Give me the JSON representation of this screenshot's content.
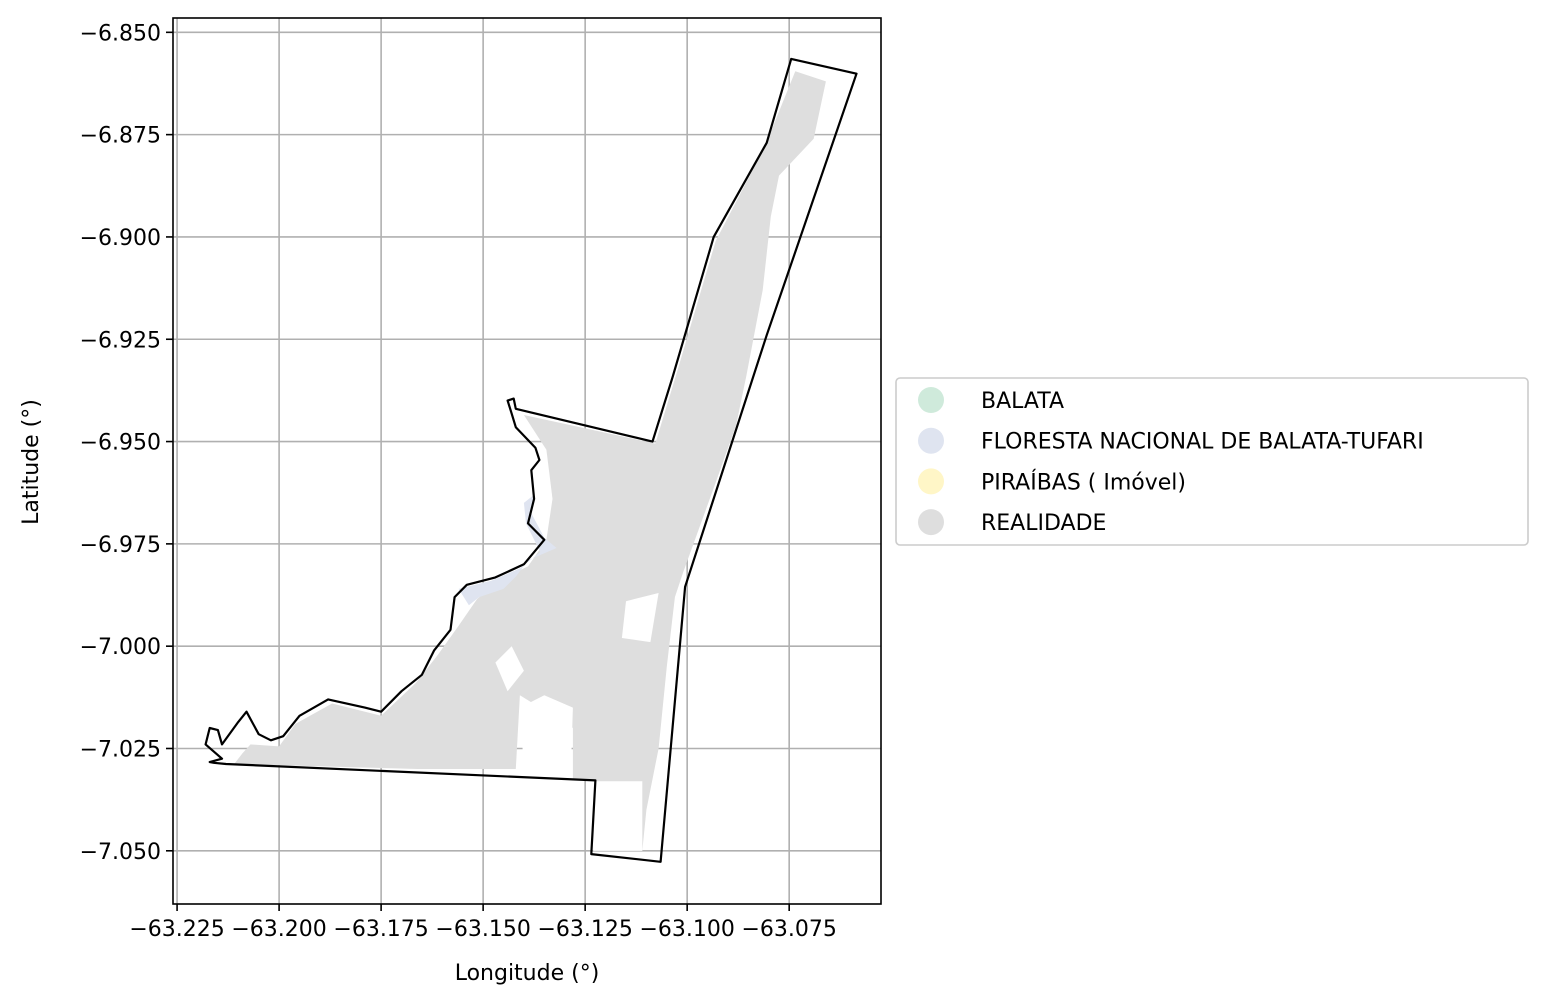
{
  "chart_data": {
    "type": "map",
    "xlabel": "Longitude (°)",
    "ylabel": "Latitude (°)",
    "xlim": [
      -63.226,
      -63.0525
    ],
    "ylim": [
      -7.063,
      -6.8465
    ],
    "grid": true,
    "xticks": [
      -63.225,
      -63.2,
      -63.175,
      -63.15,
      -63.125,
      -63.1,
      -63.075
    ],
    "xtick_labels": [
      "−63.225",
      "−63.200",
      "−63.175",
      "−63.150",
      "−63.125",
      "−63.100",
      "−63.075"
    ],
    "yticks": [
      -6.85,
      -6.875,
      -6.9,
      -6.925,
      -6.95,
      -6.975,
      -7.0,
      -7.025,
      -7.05
    ],
    "ytick_labels": [
      "−6.850",
      "−6.875",
      "−6.900",
      "−6.925",
      "−6.950",
      "−6.975",
      "−7.000",
      "−7.025",
      "−7.050"
    ],
    "legend": {
      "placement": "center-left outside",
      "entries": [
        {
          "label": "BALATA",
          "color": "#cfeadb"
        },
        {
          "label": "FLORESTA NACIONAL DE BALATA-TUFARI",
          "color": "#dfe4f0"
        },
        {
          "label": "PIRAÍBAS ( Imóvel)",
          "color": "#fff6c7"
        },
        {
          "label": "REALIDADE",
          "color": "#dedede"
        }
      ]
    },
    "boundary_outline": [
      [
        -63.216,
        -7.0285
      ],
      [
        -63.213,
        -7.0288
      ],
      [
        -63.1225,
        -7.0328
      ],
      [
        -63.1235,
        -7.0508
      ],
      [
        -63.1065,
        -7.0527
      ],
      [
        -63.1005,
        -6.9855
      ],
      [
        -63.0805,
        -6.924
      ],
      [
        -63.0585,
        -6.8601
      ],
      [
        -63.0745,
        -6.8565
      ],
      [
        -63.0805,
        -6.877
      ],
      [
        -63.0935,
        -6.9
      ],
      [
        -63.1035,
        -6.934
      ],
      [
        -63.1085,
        -6.95
      ],
      [
        -63.142,
        -6.942
      ],
      [
        -63.1425,
        -6.9395
      ],
      [
        -63.144,
        -6.94
      ],
      [
        -63.143,
        -6.9432
      ],
      [
        -63.142,
        -6.9465
      ],
      [
        -63.1372,
        -6.9515
      ],
      [
        -63.1362,
        -6.9545
      ],
      [
        -63.1382,
        -6.957
      ],
      [
        -63.1375,
        -6.964
      ],
      [
        -63.139,
        -6.97
      ],
      [
        -63.135,
        -6.974
      ],
      [
        -63.14,
        -6.98
      ],
      [
        -63.147,
        -6.9832
      ],
      [
        -63.154,
        -6.985
      ],
      [
        -63.157,
        -6.988
      ],
      [
        -63.158,
        -6.996
      ],
      [
        -63.162,
        -7.001
      ],
      [
        -63.165,
        -7.007
      ],
      [
        -63.17,
        -7.011
      ],
      [
        -63.175,
        -7.016
      ],
      [
        -63.179,
        -7.015
      ],
      [
        -63.188,
        -7.013
      ],
      [
        -63.195,
        -7.017
      ],
      [
        -63.199,
        -7.022
      ],
      [
        -63.202,
        -7.023
      ],
      [
        -63.205,
        -7.0215
      ],
      [
        -63.208,
        -7.016
      ],
      [
        -63.21,
        -7.0185
      ],
      [
        -63.214,
        -7.024
      ],
      [
        -63.215,
        -7.0205
      ],
      [
        -63.217,
        -7.02
      ],
      [
        -63.218,
        -7.024
      ],
      [
        -63.214,
        -7.0275
      ],
      [
        -63.217,
        -7.0283
      ]
    ],
    "realidade_area": [
      [
        -63.211,
        -7.0288
      ],
      [
        -63.166,
        -7.03
      ],
      [
        -63.142,
        -7.03
      ],
      [
        -63.141,
        -7.012
      ],
      [
        -63.128,
        -7.02
      ],
      [
        -63.128,
        -7.0325
      ],
      [
        -63.1225,
        -7.0328
      ],
      [
        -63.123,
        -7.05
      ],
      [
        -63.111,
        -7.05
      ],
      [
        -63.11,
        -7.04
      ],
      [
        -63.107,
        -7.025
      ],
      [
        -63.105,
        -7.005
      ],
      [
        -63.103,
        -6.988
      ],
      [
        -63.101,
        -6.982
      ],
      [
        -63.093,
        -6.96
      ],
      [
        -63.088,
        -6.946
      ],
      [
        -63.0855,
        -6.934
      ],
      [
        -63.0815,
        -6.913
      ],
      [
        -63.0795,
        -6.895
      ],
      [
        -63.0775,
        -6.885
      ],
      [
        -63.069,
        -6.876
      ],
      [
        -63.066,
        -6.862
      ],
      [
        -63.0735,
        -6.8595
      ],
      [
        -63.081,
        -6.878
      ],
      [
        -63.093,
        -6.901
      ],
      [
        -63.1025,
        -6.933
      ],
      [
        -63.1078,
        -6.9505
      ],
      [
        -63.14,
        -6.9435
      ],
      [
        -63.1345,
        -6.952
      ],
      [
        -63.133,
        -6.964
      ],
      [
        -63.1345,
        -6.974
      ],
      [
        -63.139,
        -6.9805
      ],
      [
        -63.146,
        -6.9838
      ],
      [
        -63.1515,
        -6.9885
      ],
      [
        -63.156,
        -6.995
      ],
      [
        -63.161,
        -7.002
      ],
      [
        -63.1665,
        -7.009
      ],
      [
        -63.175,
        -7.017
      ],
      [
        -63.187,
        -7.014
      ],
      [
        -63.196,
        -7.019
      ],
      [
        -63.2,
        -7.0245
      ],
      [
        -63.207,
        -7.024
      ],
      [
        -63.209,
        -7.0262
      ]
    ],
    "realidade_gaps": [
      [
        [
          -63.14,
          -7.03
        ],
        [
          -63.1285,
          -7.03
        ],
        [
          -63.128,
          -7.015
        ],
        [
          -63.135,
          -7.012
        ],
        [
          -63.141,
          -7.015
        ]
      ],
      [
        [
          -63.111,
          -7.05
        ],
        [
          -63.123,
          -7.05
        ],
        [
          -63.1225,
          -7.033
        ],
        [
          -63.111,
          -7.033
        ]
      ],
      [
        [
          -63.109,
          -6.999
        ],
        [
          -63.116,
          -6.998
        ],
        [
          -63.115,
          -6.989
        ],
        [
          -63.107,
          -6.987
        ]
      ],
      [
        [
          -63.144,
          -7.011
        ],
        [
          -63.147,
          -7.004
        ],
        [
          -63.143,
          -7.0
        ],
        [
          -63.14,
          -7.006
        ]
      ]
    ],
    "floresta_area": [
      [
        -63.1375,
        -6.963
      ],
      [
        -63.1382,
        -6.9675
      ],
      [
        -63.135,
        -6.9735
      ],
      [
        -63.132,
        -6.976
      ],
      [
        -63.139,
        -6.979
      ],
      [
        -63.142,
        -6.983
      ],
      [
        -63.145,
        -6.986
      ],
      [
        -63.151,
        -6.988
      ],
      [
        -63.1535,
        -6.99
      ],
      [
        -63.156,
        -6.986
      ],
      [
        -63.148,
        -6.984
      ],
      [
        -63.141,
        -6.981
      ],
      [
        -63.136,
        -6.977
      ],
      [
        -63.1395,
        -6.97
      ],
      [
        -63.14,
        -6.965
      ]
    ]
  }
}
